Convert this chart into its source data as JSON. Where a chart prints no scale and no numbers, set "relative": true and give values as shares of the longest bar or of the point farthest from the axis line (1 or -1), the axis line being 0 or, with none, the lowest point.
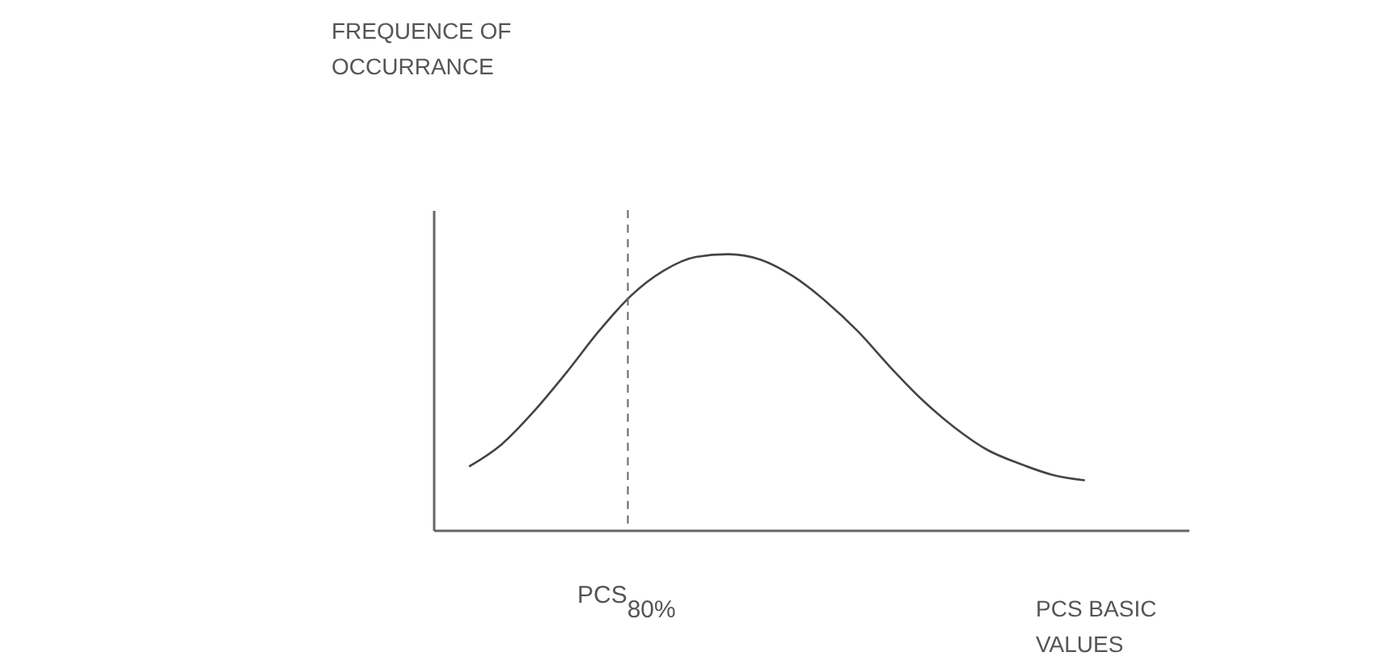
{
  "chart_data": {
    "type": "line",
    "relative": true,
    "xlabel": "PCS BASIC VALUES",
    "categories": [
      null,
      null,
      null,
      null,
      null,
      null,
      null,
      null,
      null,
      null,
      null,
      null,
      null,
      null,
      null,
      null,
      null,
      null,
      null,
      null
    ],
    "series": [
      {
        "color": "#444444",
        "values": [
          0.23,
          0.31,
          0.43,
          0.57,
          0.72,
          0.85,
          0.94,
          0.99,
          1.0,
          0.98,
          0.92,
          0.83,
          0.72,
          0.59,
          0.47,
          0.37,
          0.29,
          0.24,
          0.2,
          0.18
        ]
      }
    ],
    "annotations": [
      "FREQUENCE OF OCCURRANCE",
      "PCS$_{80%}$"
    ],
    "grid": false,
    "legend": false,
    "marker": "none",
    "line_style": "solid",
    "tick_labels": false
  }
}
